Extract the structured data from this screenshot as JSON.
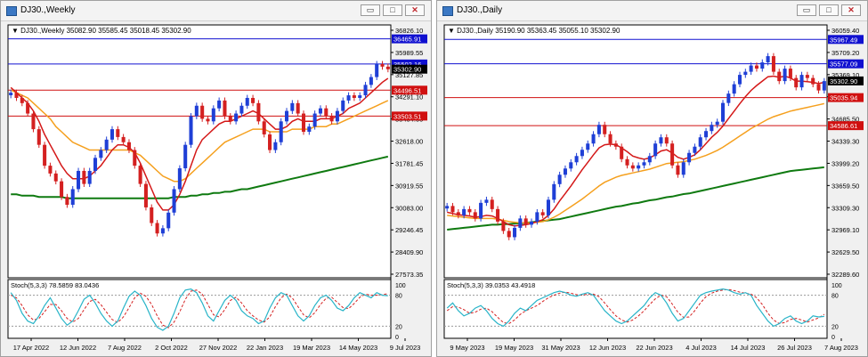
{
  "windows": [
    {
      "title": "DJ30.,Weekly",
      "buttons": {
        "minimize": "▭",
        "maximize": "□",
        "close": "✕"
      },
      "header": {
        "symbol": "DJ30.,Weekly",
        "ohlc": "35082.90 35585.45 35018.45 35302.90"
      },
      "price_axis_labels": [
        "36826.10",
        "35989.55",
        "35127.85",
        "34291.10",
        "33454.55",
        "32618.00",
        "31781.45",
        "30919.55",
        "30083.00",
        "29246.45",
        "28409.90",
        "27573.35"
      ],
      "hlines": [
        {
          "label": "36465.91",
          "value": 36465.91,
          "color": "#1010d0"
        },
        {
          "label": "35502.16",
          "value": 35502.16,
          "color": "#1010d0"
        },
        {
          "label": "34496.51",
          "value": 34496.51,
          "color": "#d01010"
        },
        {
          "label": "33503.51",
          "value": 33503.51,
          "color": "#d01010"
        }
      ],
      "current_price": {
        "label": "35302.90",
        "value": 35302.9
      },
      "stoch": {
        "label": "Stoch(5,3,3) 78.5859 83.0436",
        "levels": [
          "100",
          "80",
          "20",
          "0"
        ]
      },
      "time_labels": [
        "17 Apr 2022",
        "12 Jun 2022",
        "7 Aug 2022",
        "2 Oct 2022",
        "27 Nov 2022",
        "22 Jan 2023",
        "19 Mar 2023",
        "14 May 2023",
        "9 Jul 2023"
      ],
      "colors": {
        "bull": "#1f3fd6",
        "bear": "#d42020",
        "ma_fast": "#d41818",
        "ma_mid": "#f5a01e",
        "ma_slow": "#0f7a10",
        "stoch_main": "#28b4c8",
        "stoch_signal": "#d42020"
      }
    },
    {
      "title": "DJ30.,Daily",
      "buttons": {
        "minimize": "▭",
        "maximize": "□",
        "close": "✕"
      },
      "header": {
        "symbol": "DJ30.,Daily",
        "ohlc": "35190.90 35363.45 35055.10 35302.90"
      },
      "price_axis_labels": [
        "36059.40",
        "35709.20",
        "35369.10",
        "35019.00",
        "34685.50",
        "34339.30",
        "33999.20",
        "33659.50",
        "33309.30",
        "32969.10",
        "32629.50",
        "32289.60"
      ],
      "hlines": [
        {
          "label": "35967.49",
          "value": 35967.49,
          "color": "#1010d0"
        },
        {
          "label": "35577.09",
          "value": 35577.09,
          "color": "#1010d0"
        },
        {
          "label": "35035.94",
          "value": 35035.94,
          "color": "#d01010"
        },
        {
          "label": "34586.61",
          "value": 34586.61,
          "color": "#d01010"
        }
      ],
      "current_price": {
        "label": "35302.90",
        "value": 35302.9
      },
      "stoch": {
        "label": "Stoch(5,3,3) 39.0353 43.4918",
        "levels": [
          "100",
          "80",
          "20",
          "0"
        ]
      },
      "time_labels": [
        "9 May 2023",
        "19 May 2023",
        "31 May 2023",
        "12 Jun 2023",
        "22 Jun 2023",
        "4 Jul 2023",
        "14 Jul 2023",
        "26 Jul 2023",
        "7 Aug 2023"
      ],
      "colors": {
        "bull": "#1f3fd6",
        "bear": "#d42020",
        "ma_fast": "#d41818",
        "ma_mid": "#f5a01e",
        "ma_slow": "#0f7a10",
        "stoch_main": "#28b4c8",
        "stoch_signal": "#d42020"
      }
    }
  ],
  "chart_data": [
    {
      "type": "candlestick",
      "title": "DJ30.,Weekly",
      "ylim": [
        27300,
        37000
      ],
      "x_labels": [
        "17 Apr 2022",
        "12 Jun 2022",
        "7 Aug 2022",
        "2 Oct 2022",
        "27 Nov 2022",
        "22 Jan 2023",
        "19 Mar 2023",
        "14 May 2023",
        "9 Jul 2023"
      ],
      "close": [
        34400,
        34200,
        34000,
        33600,
        33000,
        32400,
        31600,
        31300,
        31000,
        30400,
        30100,
        30700,
        31400,
        30900,
        31400,
        31900,
        32200,
        32600,
        33000,
        32700,
        32500,
        32200,
        31600,
        30900,
        30000,
        29400,
        29000,
        29200,
        29800,
        30700,
        31500,
        32400,
        33500,
        33900,
        33400,
        33300,
        33800,
        34100,
        33500,
        33300,
        33600,
        33900,
        34200,
        34000,
        33300,
        32800,
        32200,
        32500,
        33300,
        33700,
        34000,
        33600,
        32900,
        33100,
        33600,
        33800,
        33500,
        33300,
        33700,
        34100,
        34300,
        34200,
        34300,
        34700,
        35000,
        35500,
        35400,
        35300
      ],
      "moving_averages": {
        "fast": [
          34600,
          34400,
          34200,
          34000,
          33700,
          33300,
          32800,
          32400,
          32000,
          31600,
          31300,
          31100,
          31100,
          31100,
          31200,
          31400,
          31600,
          31900,
          32200,
          32400,
          32400,
          32300,
          32100,
          31700,
          31200,
          30700,
          30200,
          29900,
          29900,
          30100,
          30500,
          31000,
          31600,
          32200,
          32600,
          32800,
          33000,
          33200,
          33300,
          33300,
          33400,
          33500,
          33600,
          33700,
          33600,
          33400,
          33200,
          33000,
          33000,
          33100,
          33300,
          33400,
          33300,
          33300,
          33300,
          33400,
          33400,
          33400,
          33500,
          33600,
          33800,
          33900,
          34000,
          34200,
          34400,
          34600,
          34800,
          34950
        ],
        "mid": [
          34500,
          34400,
          34300,
          34200,
          34000,
          33800,
          33600,
          33400,
          33100,
          32900,
          32700,
          32500,
          32400,
          32300,
          32200,
          32200,
          32200,
          32200,
          32200,
          32200,
          32200,
          32200,
          32100,
          32000,
          31800,
          31600,
          31400,
          31200,
          31100,
          31000,
          31000,
          31100,
          31300,
          31500,
          31700,
          31900,
          32100,
          32300,
          32500,
          32600,
          32700,
          32800,
          32900,
          33000,
          33000,
          33000,
          32900,
          32900,
          32900,
          32900,
          33000,
          33000,
          33000,
          33000,
          33100,
          33100,
          33100,
          33200,
          33200,
          33300,
          33400,
          33500,
          33600,
          33700,
          33800,
          33900,
          34000,
          34100
        ],
        "slow": [
          30500,
          30500,
          30450,
          30450,
          30450,
          30400,
          30400,
          30400,
          30400,
          30400,
          30350,
          30350,
          30350,
          30350,
          30350,
          30350,
          30350,
          30350,
          30350,
          30350,
          30350,
          30350,
          30350,
          30350,
          30350,
          30350,
          30350,
          30350,
          30350,
          30400,
          30400,
          30400,
          30450,
          30450,
          30500,
          30500,
          30550,
          30550,
          30600,
          30600,
          30650,
          30700,
          30700,
          30750,
          30800,
          30850,
          30900,
          30950,
          31000,
          31050,
          31100,
          31150,
          31200,
          31250,
          31300,
          31350,
          31400,
          31450,
          31500,
          31550,
          31600,
          31650,
          31700,
          31750,
          31800,
          31850,
          31900,
          31950
        ]
      },
      "hlines": [
        36465.91,
        35502.16,
        34496.51,
        33503.51
      ],
      "stoch_main": [
        85,
        70,
        45,
        30,
        25,
        40,
        60,
        75,
        55,
        35,
        22,
        30,
        50,
        72,
        80,
        65,
        45,
        30,
        20,
        30,
        55,
        78,
        88,
        80,
        60,
        35,
        18,
        12,
        20,
        45,
        75,
        90,
        92,
        85,
        65,
        40,
        30,
        50,
        70,
        80,
        70,
        50,
        40,
        35,
        25,
        30,
        55,
        75,
        85,
        80,
        60,
        40,
        30,
        40,
        60,
        75,
        80,
        70,
        55,
        50,
        60,
        75,
        85,
        80,
        75,
        85,
        80,
        79
      ],
      "stoch_signal": [
        80,
        75,
        60,
        42,
        32,
        35,
        48,
        62,
        62,
        50,
        35,
        28,
        35,
        52,
        68,
        72,
        62,
        47,
        33,
        27,
        38,
        56,
        75,
        84,
        78,
        62,
        40,
        22,
        17,
        28,
        48,
        72,
        88,
        90,
        82,
        62,
        42,
        38,
        52,
        70,
        76,
        65,
        50,
        40,
        32,
        28,
        38,
        58,
        75,
        82,
        75,
        58,
        42,
        36,
        46,
        62,
        74,
        76,
        66,
        56,
        54,
        64,
        76,
        82,
        80,
        80,
        81,
        83
      ]
    },
    {
      "type": "candlestick",
      "title": "DJ30.,Daily",
      "ylim": [
        32150,
        36200
      ],
      "x_labels": [
        "9 May 2023",
        "19 May 2023",
        "31 May 2023",
        "12 Jun 2023",
        "22 Jun 2023",
        "4 Jul 2023",
        "14 Jul 2023",
        "26 Jul 2023",
        "7 Aug 2023"
      ],
      "close": [
        33300,
        33200,
        33150,
        33250,
        33200,
        33100,
        33350,
        33400,
        33250,
        33050,
        32900,
        32800,
        32950,
        33100,
        33000,
        33050,
        33200,
        33150,
        33400,
        33650,
        33800,
        33900,
        34000,
        34100,
        34200,
        34300,
        34450,
        34600,
        34450,
        34300,
        34250,
        34050,
        33950,
        33900,
        33950,
        34000,
        34100,
        34300,
        34400,
        34300,
        33950,
        33800,
        34000,
        34150,
        34250,
        34400,
        34500,
        34600,
        34650,
        34950,
        35100,
        35250,
        35400,
        35450,
        35550,
        35500,
        35600,
        35700,
        35450,
        35300,
        35500,
        35350,
        35200,
        35400,
        35350,
        35250,
        35150,
        35300
      ],
      "moving_averages": {
        "fast": [
          33200,
          33180,
          33160,
          33150,
          33140,
          33120,
          33130,
          33150,
          33140,
          33100,
          33050,
          33000,
          32980,
          32990,
          33000,
          33020,
          33050,
          33080,
          33150,
          33250,
          33380,
          33500,
          33620,
          33750,
          33880,
          34000,
          34120,
          34230,
          34280,
          34290,
          34280,
          34230,
          34170,
          34100,
          34070,
          34050,
          34070,
          34120,
          34180,
          34200,
          34150,
          34080,
          34050,
          34080,
          34120,
          34200,
          34300,
          34400,
          34480,
          34580,
          34700,
          34820,
          34940,
          35050,
          35150,
          35230,
          35300,
          35370,
          35380,
          35360,
          35380,
          35350,
          35300,
          35300,
          35290,
          35280,
          35260,
          35280
        ],
        "mid": [
          33150,
          33140,
          33130,
          33120,
          33110,
          33100,
          33100,
          33100,
          33100,
          33090,
          33070,
          33050,
          33040,
          33030,
          33030,
          33030,
          33040,
          33050,
          33080,
          33120,
          33170,
          33230,
          33290,
          33350,
          33410,
          33480,
          33550,
          33620,
          33680,
          33720,
          33760,
          33790,
          33810,
          33830,
          33850,
          33870,
          33890,
          33920,
          33950,
          33980,
          33990,
          34000,
          34010,
          34030,
          34050,
          34080,
          34110,
          34150,
          34190,
          34240,
          34300,
          34360,
          34420,
          34480,
          34540,
          34590,
          34640,
          34690,
          34730,
          34760,
          34790,
          34820,
          34840,
          34860,
          34880,
          34900,
          34920,
          34940
        ],
        "slow": [
          32920,
          32930,
          32940,
          32950,
          32960,
          32970,
          32980,
          32990,
          33000,
          33000,
          33010,
          33010,
          33020,
          33020,
          33030,
          33040,
          33050,
          33060,
          33070,
          33080,
          33090,
          33110,
          33130,
          33150,
          33170,
          33190,
          33210,
          33230,
          33250,
          33270,
          33290,
          33300,
          33320,
          33340,
          33350,
          33370,
          33390,
          33400,
          33420,
          33440,
          33450,
          33470,
          33490,
          33500,
          33520,
          33540,
          33560,
          33580,
          33600,
          33620,
          33640,
          33660,
          33680,
          33700,
          33720,
          33740,
          33760,
          33780,
          33800,
          33820,
          33840,
          33860,
          33870,
          33880,
          33890,
          33900,
          33910,
          33920
        ]
      },
      "hlines": [
        35967.49,
        35577.09,
        35035.94,
        34586.61
      ],
      "stoch_main": [
        55,
        65,
        50,
        40,
        45,
        55,
        60,
        50,
        35,
        25,
        20,
        30,
        45,
        55,
        50,
        60,
        70,
        75,
        80,
        85,
        88,
        85,
        80,
        78,
        82,
        85,
        80,
        65,
        50,
        40,
        30,
        25,
        30,
        40,
        50,
        60,
        75,
        85,
        80,
        65,
        45,
        30,
        35,
        50,
        65,
        80,
        85,
        88,
        90,
        92,
        90,
        85,
        82,
        85,
        80,
        60,
        45,
        30,
        20,
        25,
        35,
        40,
        30,
        25,
        30,
        40,
        38,
        39
      ],
      "stoch_signal": [
        50,
        58,
        57,
        52,
        45,
        47,
        53,
        55,
        48,
        37,
        27,
        25,
        32,
        43,
        50,
        55,
        60,
        68,
        75,
        80,
        84,
        86,
        84,
        81,
        80,
        82,
        82,
        77,
        65,
        52,
        40,
        32,
        28,
        32,
        40,
        50,
        62,
        73,
        80,
        77,
        63,
        47,
        37,
        38,
        50,
        65,
        77,
        84,
        88,
        90,
        91,
        89,
        86,
        84,
        82,
        75,
        62,
        45,
        32,
        25,
        27,
        33,
        35,
        32,
        28,
        32,
        36,
        43
      ]
    }
  ]
}
